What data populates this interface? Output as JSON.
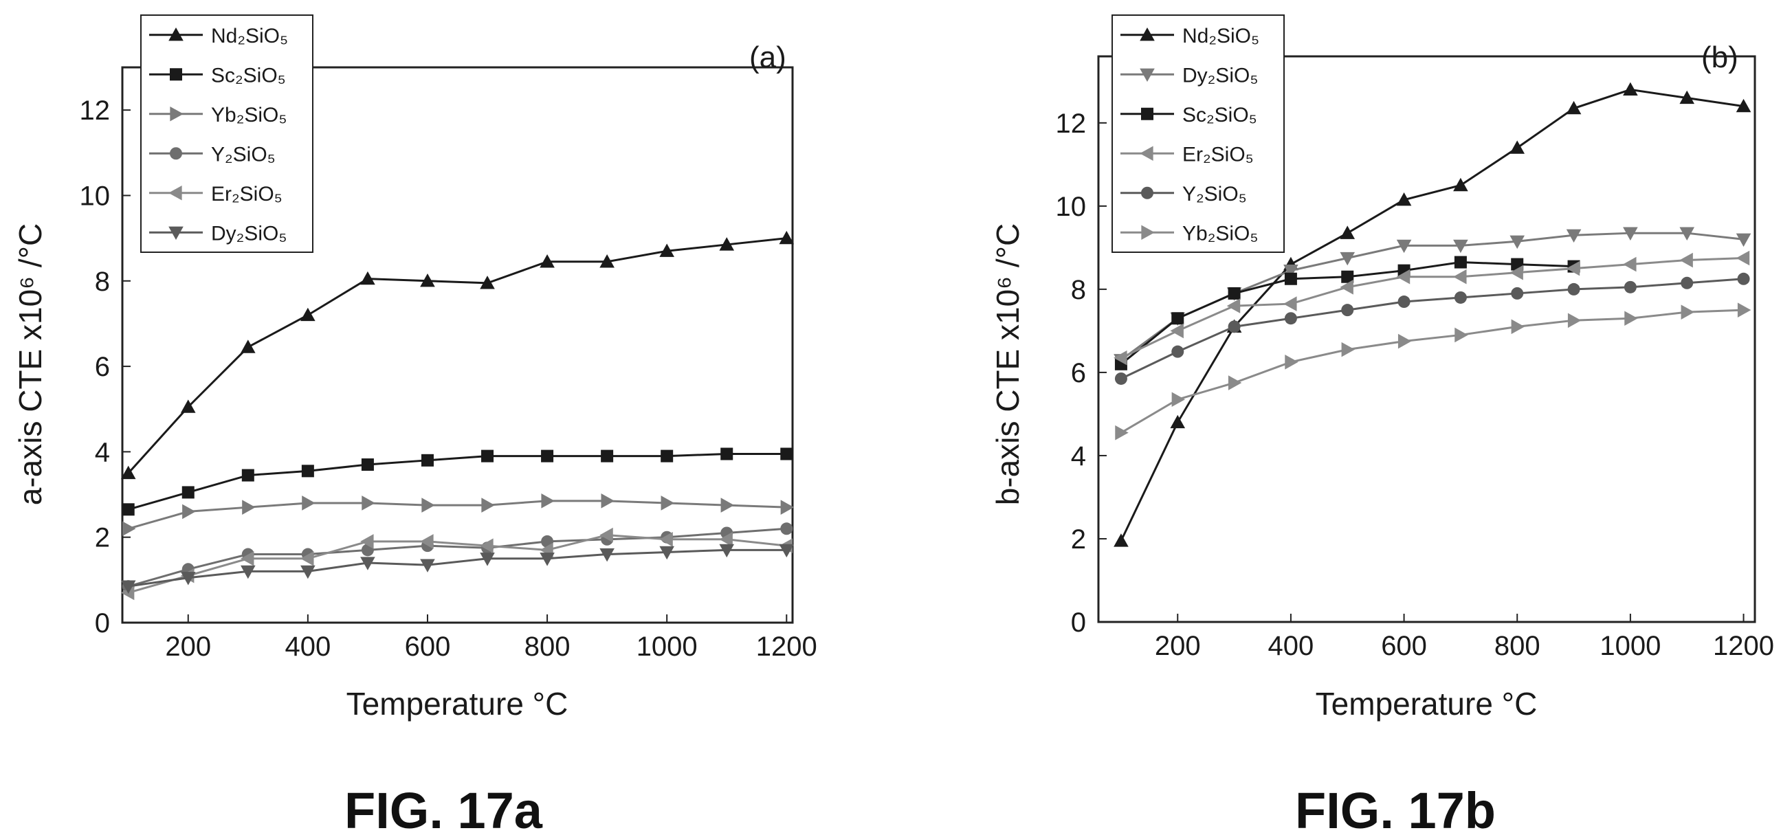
{
  "chart_data": [
    {
      "type": "line",
      "panel_label": "(a)",
      "caption": "FIG. 17a",
      "xlabel": "Temperature °C",
      "ylabel": "a-axis CTE x10⁶ /°C",
      "xlim": [
        90,
        1210
      ],
      "ylim": [
        0,
        13
      ],
      "xticks": [
        200,
        400,
        600,
        800,
        1000,
        1200
      ],
      "yticks": [
        0,
        2,
        4,
        6,
        8,
        10,
        12
      ],
      "legend_position": "top-left",
      "x": [
        100,
        200,
        300,
        400,
        500,
        600,
        700,
        800,
        900,
        1000,
        1100,
        1200
      ],
      "series": [
        {
          "name": "Nd₂SiO₅",
          "marker": "triangle-up",
          "color": "#1a1a1a",
          "values": [
            3.5,
            5.05,
            6.45,
            7.2,
            8.05,
            8.0,
            7.95,
            8.45,
            8.45,
            8.7,
            8.85,
            9.0
          ]
        },
        {
          "name": "Sc₂SiO₅",
          "marker": "square",
          "color": "#1a1a1a",
          "values": [
            2.65,
            3.05,
            3.45,
            3.55,
            3.7,
            3.8,
            3.9,
            3.9,
            3.9,
            3.9,
            3.95,
            3.95
          ]
        },
        {
          "name": "Yb₂SiO₅",
          "marker": "triangle-right",
          "color": "#7a7a7a",
          "values": [
            2.2,
            2.6,
            2.7,
            2.8,
            2.8,
            2.75,
            2.75,
            2.85,
            2.85,
            2.8,
            2.75,
            2.7
          ]
        },
        {
          "name": "Y₂SiO₅",
          "marker": "circle",
          "color": "#6e6e6e",
          "values": [
            0.85,
            1.25,
            1.6,
            1.6,
            1.7,
            1.8,
            1.75,
            1.9,
            1.95,
            2.0,
            2.1,
            2.2
          ]
        },
        {
          "name": "Er₂SiO₅",
          "marker": "triangle-left",
          "color": "#8a8a8a",
          "values": [
            0.7,
            1.1,
            1.5,
            1.5,
            1.9,
            1.9,
            1.8,
            1.7,
            2.05,
            1.95,
            1.95,
            1.8
          ]
        },
        {
          "name": "Dy₂SiO₅",
          "marker": "triangle-down",
          "color": "#5a5a5a",
          "values": [
            0.85,
            1.05,
            1.2,
            1.2,
            1.4,
            1.35,
            1.5,
            1.5,
            1.6,
            1.65,
            1.7,
            1.7
          ]
        }
      ]
    },
    {
      "type": "line",
      "panel_label": "(b)",
      "caption": "FIG. 17b",
      "xlabel": "Temperature °C",
      "ylabel": "b-axis CTE x10⁶ /°C",
      "xlim": [
        60,
        1220
      ],
      "ylim": [
        0,
        13.6
      ],
      "xticks": [
        200,
        400,
        600,
        800,
        1000,
        1200
      ],
      "yticks": [
        0,
        2,
        4,
        6,
        8,
        10,
        12
      ],
      "legend_position": "top-left",
      "series": [
        {
          "name": "Nd₂SiO₅",
          "marker": "triangle-up",
          "color": "#1a1a1a",
          "x": [
            100,
            200,
            300,
            400,
            500,
            600,
            700,
            800,
            900,
            1000,
            1100,
            1200
          ],
          "values": [
            1.95,
            4.8,
            7.1,
            8.6,
            9.35,
            10.15,
            10.5,
            11.4,
            12.35,
            12.8,
            12.6,
            12.4
          ]
        },
        {
          "name": "Dy₂SiO₅",
          "marker": "triangle-down",
          "color": "#7a7a7a",
          "x": [
            100,
            200,
            300,
            400,
            500,
            600,
            700,
            800,
            900,
            1000,
            1100,
            1200
          ],
          "values": [
            6.3,
            7.3,
            7.9,
            8.45,
            8.75,
            9.05,
            9.05,
            9.15,
            9.3,
            9.35,
            9.35,
            9.2
          ]
        },
        {
          "name": "Sc₂SiO₅",
          "marker": "square",
          "color": "#1a1a1a",
          "x": [
            100,
            200,
            300,
            400,
            500,
            600,
            700,
            800,
            900
          ],
          "values": [
            6.2,
            7.3,
            7.9,
            8.25,
            8.3,
            8.45,
            8.65,
            8.6,
            8.55
          ]
        },
        {
          "name": "Er₂SiO₅",
          "marker": "triangle-left",
          "color": "#8a8a8a",
          "x": [
            100,
            200,
            300,
            400,
            500,
            600,
            700,
            800,
            900,
            1000,
            1100,
            1200
          ],
          "values": [
            6.35,
            7.0,
            7.6,
            7.65,
            8.05,
            8.3,
            8.3,
            8.4,
            8.5,
            8.6,
            8.7,
            8.75
          ]
        },
        {
          "name": "Y₂SiO₅",
          "marker": "circle",
          "color": "#5a5a5a",
          "x": [
            100,
            200,
            300,
            400,
            500,
            600,
            700,
            800,
            900,
            1000,
            1100,
            1200
          ],
          "values": [
            5.85,
            6.5,
            7.1,
            7.3,
            7.5,
            7.7,
            7.8,
            7.9,
            8.0,
            8.05,
            8.15,
            8.25
          ]
        },
        {
          "name": "Yb₂SiO₅",
          "marker": "triangle-right",
          "color": "#8a8a8a",
          "x": [
            100,
            200,
            300,
            400,
            500,
            600,
            700,
            800,
            900,
            1000,
            1100,
            1200
          ],
          "values": [
            4.55,
            5.35,
            5.75,
            6.25,
            6.55,
            6.75,
            6.9,
            7.1,
            7.25,
            7.3,
            7.45,
            7.5
          ]
        }
      ]
    }
  ]
}
